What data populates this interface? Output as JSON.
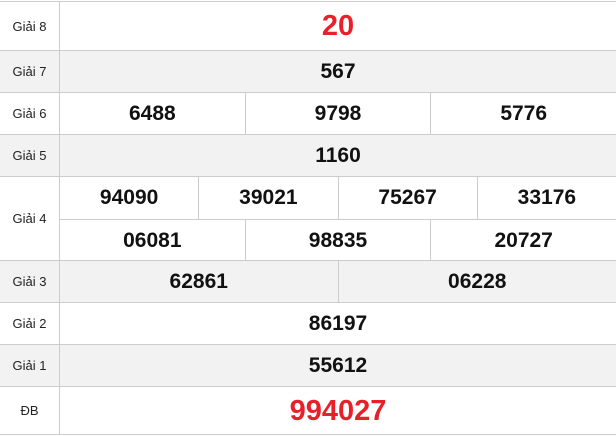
{
  "rows": [
    {
      "label": "Giải 8",
      "numbers": [
        "20"
      ],
      "highlight": true
    },
    {
      "label": "Giải 7",
      "numbers": [
        "567"
      ]
    },
    {
      "label": "Giải 6",
      "numbers": [
        "6488",
        "9798",
        "5776"
      ]
    },
    {
      "label": "Giải 5",
      "numbers": [
        "1160"
      ]
    },
    {
      "label": "Giải 4",
      "numbers": [
        "94090",
        "39021",
        "75267",
        "33176"
      ],
      "numbers2": [
        "06081",
        "98835",
        "20727"
      ]
    },
    {
      "label": "Giải 3",
      "numbers": [
        "62861",
        "06228"
      ]
    },
    {
      "label": "Giải 2",
      "numbers": [
        "86197"
      ]
    },
    {
      "label": "Giải 1",
      "numbers": [
        "55612"
      ]
    },
    {
      "label": "ĐB",
      "numbers": [
        "994027"
      ],
      "highlight": true
    }
  ],
  "colors": {
    "highlight": "#e8202a",
    "alt_row": "#f2f2f2",
    "border": "#cccccc"
  }
}
